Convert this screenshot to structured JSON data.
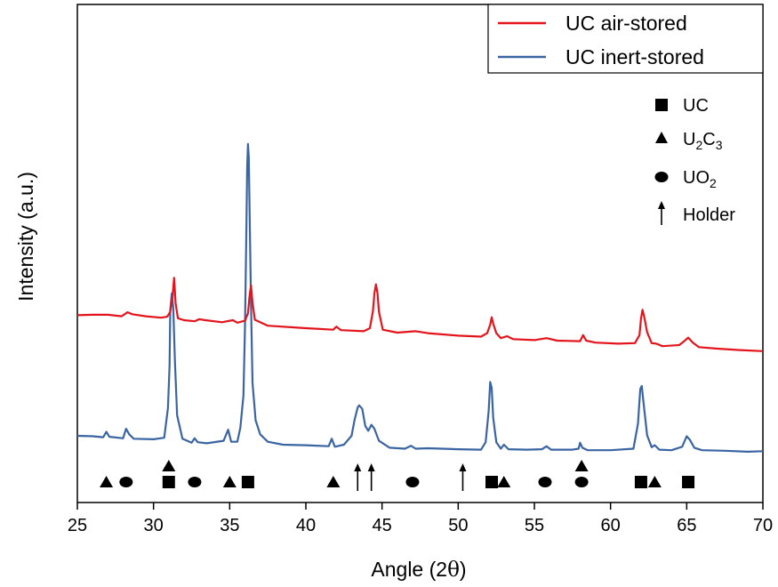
{
  "chart_data": {
    "type": "line",
    "xlabel_main": "Angle (2",
    "xlabel_symbol": "θ",
    "xlabel_close": ")",
    "ylabel": "Intensity (a.u.)",
    "xlim": [
      25,
      70
    ],
    "ylim": [
      0,
      100
    ],
    "xticks": [
      25,
      30,
      35,
      40,
      45,
      50,
      55,
      60,
      65,
      70
    ],
    "grid": false,
    "legend_position": "top-right",
    "y_tick_labels": false,
    "series": [
      {
        "name": "UC air-stored",
        "color": "#e3141b",
        "points": [
          [
            25,
            37.6
          ],
          [
            26,
            37.7
          ],
          [
            27,
            37.7
          ],
          [
            27.9,
            37.4
          ],
          [
            28.3,
            38.2
          ],
          [
            28.6,
            37.8
          ],
          [
            29.5,
            37.4
          ],
          [
            30.5,
            37.1
          ],
          [
            30.9,
            37.3
          ],
          [
            31.1,
            38.3
          ],
          [
            31.25,
            41.5
          ],
          [
            31.35,
            45.1
          ],
          [
            31.45,
            40.0
          ],
          [
            31.6,
            37.0
          ],
          [
            32,
            36.6
          ],
          [
            32.7,
            36.4
          ],
          [
            33,
            36.8
          ],
          [
            33.4,
            36.6
          ],
          [
            34.5,
            36.2
          ],
          [
            35.2,
            36.6
          ],
          [
            35.5,
            36.1
          ],
          [
            36,
            36.5
          ],
          [
            36.2,
            38.0
          ],
          [
            36.3,
            41.3
          ],
          [
            36.4,
            43.6
          ],
          [
            36.5,
            40.1
          ],
          [
            36.65,
            36.7
          ],
          [
            37.5,
            35.5
          ],
          [
            40,
            35.0
          ],
          [
            41.8,
            34.7
          ],
          [
            42,
            35.3
          ],
          [
            42.3,
            34.6
          ],
          [
            43.8,
            34.4
          ],
          [
            44.2,
            35.0
          ],
          [
            44.4,
            38.4
          ],
          [
            44.5,
            42.0
          ],
          [
            44.6,
            43.8
          ],
          [
            44.7,
            42.1
          ],
          [
            44.8,
            38.3
          ],
          [
            45.05,
            34.7
          ],
          [
            46,
            34.1
          ],
          [
            47.2,
            34.4
          ],
          [
            48,
            34.0
          ],
          [
            50,
            33.5
          ],
          [
            51.5,
            33.3
          ],
          [
            51.9,
            34.0
          ],
          [
            52.1,
            35.7
          ],
          [
            52.2,
            37.2
          ],
          [
            52.3,
            35.9
          ],
          [
            52.5,
            34.0
          ],
          [
            52.8,
            33.0
          ],
          [
            53.2,
            33.4
          ],
          [
            53.6,
            32.8
          ],
          [
            55,
            32.6
          ],
          [
            55.8,
            33.0
          ],
          [
            56.5,
            32.5
          ],
          [
            58.0,
            32.4
          ],
          [
            58.2,
            33.6
          ],
          [
            58.4,
            32.5
          ],
          [
            59,
            32.1
          ],
          [
            60.5,
            31.9
          ],
          [
            61.6,
            32.0
          ],
          [
            61.9,
            33.6
          ],
          [
            62.0,
            36.9
          ],
          [
            62.1,
            38.7
          ],
          [
            62.2,
            37.4
          ],
          [
            62.4,
            34.2
          ],
          [
            62.7,
            32.0
          ],
          [
            63,
            31.9
          ],
          [
            63.4,
            31.4
          ],
          [
            64.5,
            31.6
          ],
          [
            64.8,
            32.3
          ],
          [
            65.1,
            33.1
          ],
          [
            65.4,
            32.1
          ],
          [
            65.8,
            31.2
          ],
          [
            67,
            30.9
          ],
          [
            68.5,
            30.6
          ],
          [
            70,
            30.4
          ]
        ]
      },
      {
        "name": "UC inert-stored",
        "color": "#3a64a2",
        "points": [
          [
            25,
            13.4
          ],
          [
            26,
            13.3
          ],
          [
            26.7,
            13.1
          ],
          [
            26.9,
            14.2
          ],
          [
            27.1,
            13.2
          ],
          [
            28,
            12.9
          ],
          [
            28.2,
            14.8
          ],
          [
            28.4,
            13.7
          ],
          [
            28.7,
            12.8
          ],
          [
            30,
            12.7
          ],
          [
            30.7,
            13.0
          ],
          [
            30.95,
            19.0
          ],
          [
            31.05,
            27.5
          ],
          [
            31.1,
            38.6
          ],
          [
            31.2,
            42.0
          ],
          [
            31.3,
            39.0
          ],
          [
            31.4,
            28.5
          ],
          [
            31.55,
            17.5
          ],
          [
            31.9,
            12.8
          ],
          [
            32.5,
            12.0
          ],
          [
            32.7,
            12.9
          ],
          [
            32.9,
            12.1
          ],
          [
            33.5,
            11.9
          ],
          [
            34.6,
            12.4
          ],
          [
            34.9,
            14.6
          ],
          [
            35.1,
            12.2
          ],
          [
            35.5,
            12.2
          ],
          [
            35.7,
            15.0
          ],
          [
            35.9,
            21.5
          ],
          [
            36.0,
            35.0
          ],
          [
            36.1,
            56.0
          ],
          [
            36.15,
            67.5
          ],
          [
            36.2,
            72.0
          ],
          [
            36.25,
            69.2
          ],
          [
            36.3,
            60.0
          ],
          [
            36.4,
            40.0
          ],
          [
            36.5,
            24.0
          ],
          [
            36.7,
            16.5
          ],
          [
            37.0,
            13.7
          ],
          [
            37.5,
            12.2
          ],
          [
            38.5,
            11.6
          ],
          [
            40,
            11.5
          ],
          [
            41.5,
            11.3
          ],
          [
            41.7,
            12.8
          ],
          [
            41.9,
            11.2
          ],
          [
            42.5,
            11.6
          ],
          [
            43.0,
            13.4
          ],
          [
            43.2,
            16.6
          ],
          [
            43.4,
            19.1
          ],
          [
            43.5,
            19.5
          ],
          [
            43.7,
            18.8
          ],
          [
            43.9,
            15.4
          ],
          [
            44.1,
            14.4
          ],
          [
            44.3,
            15.6
          ],
          [
            44.5,
            14.8
          ],
          [
            44.8,
            12.4
          ],
          [
            45.5,
            11.0
          ],
          [
            46.5,
            10.8
          ],
          [
            46.9,
            11.4
          ],
          [
            47.2,
            10.8
          ],
          [
            48,
            10.9
          ],
          [
            50,
            10.7
          ],
          [
            51.5,
            10.6
          ],
          [
            51.8,
            12.1
          ],
          [
            52.0,
            18.4
          ],
          [
            52.1,
            24.2
          ],
          [
            52.2,
            23.0
          ],
          [
            52.3,
            17.0
          ],
          [
            52.5,
            12.1
          ],
          [
            52.8,
            10.8
          ],
          [
            53.0,
            11.6
          ],
          [
            53.3,
            10.7
          ],
          [
            54.5,
            10.6
          ],
          [
            55.5,
            10.7
          ],
          [
            55.8,
            11.3
          ],
          [
            56.1,
            10.6
          ],
          [
            57.5,
            10.6
          ],
          [
            57.9,
            10.8
          ],
          [
            58.0,
            12.0
          ],
          [
            58.15,
            11.0
          ],
          [
            58.5,
            10.5
          ],
          [
            60,
            10.5
          ],
          [
            61.5,
            10.8
          ],
          [
            61.8,
            15.8
          ],
          [
            61.95,
            22.8
          ],
          [
            62.05,
            23.4
          ],
          [
            62.2,
            19.0
          ],
          [
            62.4,
            13.5
          ],
          [
            62.7,
            11.1
          ],
          [
            62.9,
            11.5
          ],
          [
            63.2,
            10.6
          ],
          [
            64,
            10.5
          ],
          [
            64.7,
            11.2
          ],
          [
            65.0,
            13.3
          ],
          [
            65.2,
            12.6
          ],
          [
            65.5,
            11.0
          ],
          [
            66,
            10.5
          ],
          [
            67.5,
            10.4
          ],
          [
            69,
            10.2
          ],
          [
            70,
            10.3
          ]
        ]
      }
    ],
    "phase_key": [
      {
        "symbol": "square",
        "label": "UC",
        "subscripts": []
      },
      {
        "symbol": "triangle",
        "label": "U2C3",
        "subscripts": [
          [
            "U",
            ""
          ],
          [
            "2",
            "sub"
          ],
          [
            "C",
            ""
          ],
          [
            "3",
            "sub"
          ]
        ]
      },
      {
        "symbol": "circle",
        "label": "UO2",
        "subscripts": [
          [
            "UO",
            ""
          ],
          [
            "2",
            "sub"
          ]
        ]
      },
      {
        "symbol": "arrow",
        "label": "Holder",
        "subscripts": []
      }
    ],
    "phase_markers": [
      {
        "symbol": "triangle",
        "x": 26.9,
        "row": "low"
      },
      {
        "symbol": "circle",
        "x": 28.2,
        "row": "low"
      },
      {
        "symbol": "triangle",
        "x": 31.0,
        "row": "high"
      },
      {
        "symbol": "square",
        "x": 31.0,
        "row": "low"
      },
      {
        "symbol": "circle",
        "x": 32.7,
        "row": "low"
      },
      {
        "symbol": "triangle",
        "x": 35.0,
        "row": "low"
      },
      {
        "symbol": "square",
        "x": 36.2,
        "row": "low"
      },
      {
        "symbol": "triangle",
        "x": 41.8,
        "row": "low"
      },
      {
        "symbol": "arrow",
        "x": 43.4,
        "row": "low"
      },
      {
        "symbol": "arrow",
        "x": 44.3,
        "row": "low"
      },
      {
        "symbol": "circle",
        "x": 47.0,
        "row": "low"
      },
      {
        "symbol": "arrow",
        "x": 50.3,
        "row": "low"
      },
      {
        "symbol": "square",
        "x": 52.2,
        "row": "low"
      },
      {
        "symbol": "triangle",
        "x": 53.0,
        "row": "low"
      },
      {
        "symbol": "circle",
        "x": 55.7,
        "row": "low"
      },
      {
        "symbol": "triangle",
        "x": 58.1,
        "row": "high"
      },
      {
        "symbol": "circle",
        "x": 58.1,
        "row": "low"
      },
      {
        "symbol": "square",
        "x": 62.0,
        "row": "low"
      },
      {
        "symbol": "triangle",
        "x": 62.9,
        "row": "low"
      },
      {
        "symbol": "square",
        "x": 65.1,
        "row": "low"
      }
    ]
  }
}
